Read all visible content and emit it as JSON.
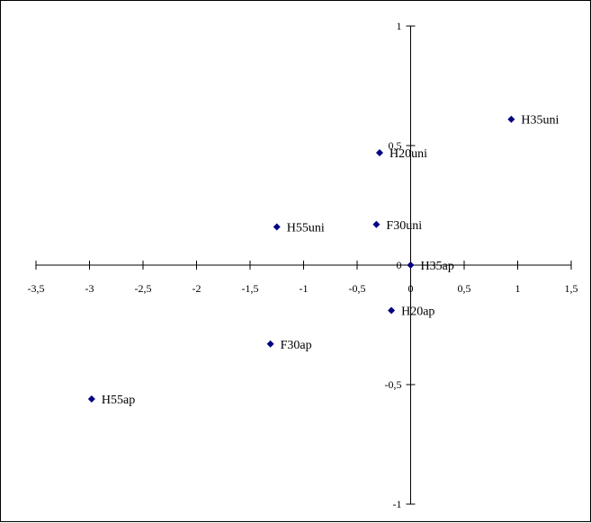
{
  "chart_data": {
    "type": "scatter",
    "title": "",
    "xlabel": "",
    "ylabel": "",
    "xlim": [
      -3.5,
      1.5
    ],
    "ylim": [
      -1,
      1
    ],
    "x_ticks": [
      -3.5,
      -3,
      -2.5,
      -2,
      -1.5,
      -1,
      -0.5,
      0,
      0.5,
      1,
      1.5
    ],
    "y_ticks": [
      -1,
      -0.5,
      0,
      0.5,
      1
    ],
    "x_tick_labels": [
      "-3,5",
      "-3",
      "-2,5",
      "-2",
      "-1,5",
      "-1",
      "-0,5",
      "0",
      "0,5",
      "1",
      "1,5"
    ],
    "y_tick_labels": [
      "-1",
      "-0,5",
      "0",
      "0,5",
      "1"
    ],
    "grid": false,
    "legend": "none",
    "marker_color": "#00007f",
    "points": [
      {
        "label": "H35uni",
        "x": 0.94,
        "y": 0.61
      },
      {
        "label": "H20uni",
        "x": -0.29,
        "y": 0.47
      },
      {
        "label": "H55uni",
        "x": -1.25,
        "y": 0.16
      },
      {
        "label": "F30uni",
        "x": -0.32,
        "y": 0.17
      },
      {
        "label": "H35ap",
        "x": 0.0,
        "y": 0.0
      },
      {
        "label": "H20ap",
        "x": -0.18,
        "y": -0.19
      },
      {
        "label": "F30ap",
        "x": -1.31,
        "y": -0.33
      },
      {
        "label": "H55ap",
        "x": -2.98,
        "y": -0.56
      }
    ]
  }
}
